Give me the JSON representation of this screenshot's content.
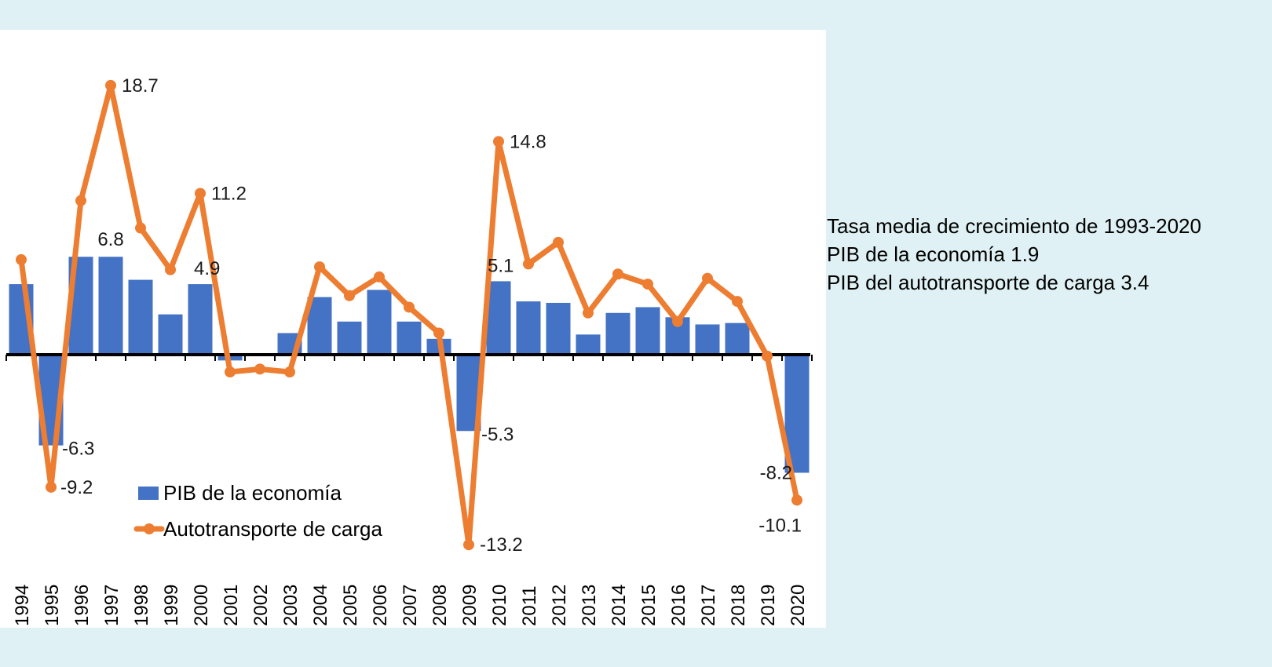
{
  "chart_data": {
    "type": "bar+line",
    "categories": [
      "1994",
      "1995",
      "1996",
      "1997",
      "1998",
      "1999",
      "2000",
      "2001",
      "2002",
      "2003",
      "2004",
      "2005",
      "2006",
      "2007",
      "2008",
      "2009",
      "2010",
      "2011",
      "2012",
      "2013",
      "2014",
      "2015",
      "2016",
      "2017",
      "2018",
      "2019",
      "2020"
    ],
    "series": [
      {
        "name": "PIB de la economía",
        "type": "bar",
        "color": "#4472c4",
        "values": [
          4.9,
          -6.3,
          6.8,
          6.8,
          5.2,
          2.8,
          4.9,
          -0.4,
          0.0,
          1.5,
          4.0,
          2.3,
          4.5,
          2.3,
          1.1,
          -5.3,
          5.1,
          3.7,
          3.6,
          1.4,
          2.9,
          3.3,
          2.6,
          2.1,
          2.2,
          -0.1,
          -8.2
        ]
      },
      {
        "name": "Autotransporte de carga",
        "type": "line",
        "color": "#ed7d31",
        "values": [
          6.6,
          -9.2,
          10.7,
          18.7,
          8.8,
          5.9,
          11.2,
          -1.2,
          -1.0,
          -1.2,
          6.1,
          4.1,
          5.4,
          3.3,
          1.5,
          -13.2,
          14.8,
          6.3,
          7.8,
          2.9,
          5.6,
          4.9,
          2.3,
          5.3,
          3.7,
          -0.1,
          -10.1
        ]
      }
    ],
    "data_labels": [
      {
        "series": 1,
        "index": 3,
        "text": "18.7"
      },
      {
        "series": 1,
        "index": 16,
        "text": "14.8"
      },
      {
        "series": 1,
        "index": 6,
        "text": "11.2"
      },
      {
        "series": 0,
        "index": 3,
        "text": "6.8"
      },
      {
        "series": 0,
        "index": 6,
        "text": "4.9"
      },
      {
        "series": 0,
        "index": 16,
        "text": "5.1"
      },
      {
        "series": 0,
        "index": 1,
        "text": "-6.3"
      },
      {
        "series": 1,
        "index": 1,
        "text": "-9.2"
      },
      {
        "series": 0,
        "index": 15,
        "text": "-5.3"
      },
      {
        "series": 1,
        "index": 15,
        "text": "-13.2"
      },
      {
        "series": 0,
        "index": 26,
        "text": "-8.2"
      },
      {
        "series": 1,
        "index": 26,
        "text": "-10.1"
      }
    ],
    "legend": [
      "PIB de la economía",
      "Autotransporte de carga"
    ],
    "legend_position": "bottom-left",
    "ylim": [
      -14,
      20
    ],
    "grid": false,
    "title": "",
    "xlabel": "",
    "ylabel": ""
  },
  "notes": {
    "line1": "Tasa media de crecimiento de 1993-2020",
    "line2": "PIB de la economía  1.9",
    "line3": "PIB del autotransporte de carga 3.4"
  }
}
